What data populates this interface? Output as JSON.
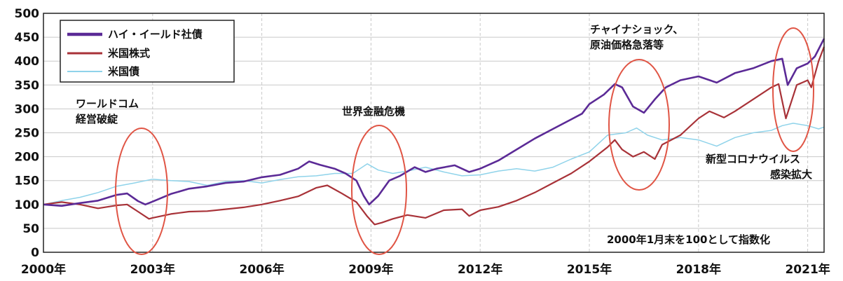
{
  "chart_data": {
    "type": "line",
    "title": "",
    "xlabel": "",
    "ylabel": "",
    "xlim": [
      2000.0,
      2021.45
    ],
    "ylim": [
      0,
      500
    ],
    "grid": true,
    "legend_position": "top-left",
    "yticks": [
      0,
      50,
      100,
      150,
      200,
      250,
      300,
      350,
      400,
      450,
      500
    ],
    "xticks": [
      {
        "value": 2000,
        "label": "2000年"
      },
      {
        "value": 2003,
        "label": "2003年"
      },
      {
        "value": 2006,
        "label": "2006年"
      },
      {
        "value": 2009,
        "label": "2009年"
      },
      {
        "value": 2012,
        "label": "2012年"
      },
      {
        "value": 2015,
        "label": "2015年"
      },
      {
        "value": 2018,
        "label": "2018年"
      },
      {
        "value": 2021,
        "label": "2021年"
      }
    ],
    "series": [
      {
        "name": "ハイ・イールド社債",
        "color": "#5b2a96",
        "points": [
          [
            2000.0,
            100
          ],
          [
            2000.5,
            97
          ],
          [
            2001.0,
            103
          ],
          [
            2001.5,
            108
          ],
          [
            2002.0,
            120
          ],
          [
            2002.3,
            123
          ],
          [
            2002.6,
            107
          ],
          [
            2002.8,
            100
          ],
          [
            2003.0,
            106
          ],
          [
            2003.5,
            122
          ],
          [
            2004.0,
            133
          ],
          [
            2004.5,
            138
          ],
          [
            2005.0,
            145
          ],
          [
            2005.5,
            148
          ],
          [
            2006.0,
            157
          ],
          [
            2006.5,
            162
          ],
          [
            2007.0,
            175
          ],
          [
            2007.3,
            190
          ],
          [
            2007.6,
            183
          ],
          [
            2008.0,
            175
          ],
          [
            2008.3,
            165
          ],
          [
            2008.6,
            150
          ],
          [
            2008.8,
            118
          ],
          [
            2008.95,
            100
          ],
          [
            2009.2,
            118
          ],
          [
            2009.5,
            150
          ],
          [
            2009.8,
            160
          ],
          [
            2010.2,
            178
          ],
          [
            2010.5,
            168
          ],
          [
            2010.8,
            175
          ],
          [
            2011.3,
            182
          ],
          [
            2011.7,
            168
          ],
          [
            2012.0,
            175
          ],
          [
            2012.5,
            192
          ],
          [
            2013.0,
            215
          ],
          [
            2013.5,
            238
          ],
          [
            2014.0,
            258
          ],
          [
            2014.5,
            278
          ],
          [
            2014.8,
            290
          ],
          [
            2015.0,
            310
          ],
          [
            2015.4,
            330
          ],
          [
            2015.7,
            352
          ],
          [
            2015.9,
            345
          ],
          [
            2016.2,
            305
          ],
          [
            2016.5,
            292
          ],
          [
            2016.8,
            320
          ],
          [
            2017.1,
            345
          ],
          [
            2017.5,
            360
          ],
          [
            2018.0,
            368
          ],
          [
            2018.5,
            355
          ],
          [
            2019.0,
            375
          ],
          [
            2019.5,
            385
          ],
          [
            2020.0,
            400
          ],
          [
            2020.3,
            405
          ],
          [
            2020.45,
            350
          ],
          [
            2020.7,
            385
          ],
          [
            2021.0,
            395
          ],
          [
            2021.2,
            410
          ],
          [
            2021.45,
            447
          ]
        ]
      },
      {
        "name": "米国株式",
        "color": "#a83238",
        "points": [
          [
            2000.0,
            100
          ],
          [
            2000.5,
            105
          ],
          [
            2001.0,
            100
          ],
          [
            2001.5,
            92
          ],
          [
            2002.0,
            98
          ],
          [
            2002.3,
            100
          ],
          [
            2002.6,
            85
          ],
          [
            2002.9,
            70
          ],
          [
            2003.0,
            72
          ],
          [
            2003.5,
            80
          ],
          [
            2004.0,
            85
          ],
          [
            2004.5,
            86
          ],
          [
            2005.0,
            90
          ],
          [
            2005.5,
            94
          ],
          [
            2006.0,
            100
          ],
          [
            2006.5,
            108
          ],
          [
            2007.0,
            117
          ],
          [
            2007.5,
            135
          ],
          [
            2007.8,
            140
          ],
          [
            2008.2,
            123
          ],
          [
            2008.6,
            105
          ],
          [
            2008.9,
            75
          ],
          [
            2009.1,
            58
          ],
          [
            2009.3,
            62
          ],
          [
            2009.6,
            70
          ],
          [
            2010.0,
            78
          ],
          [
            2010.5,
            72
          ],
          [
            2011.0,
            88
          ],
          [
            2011.5,
            90
          ],
          [
            2011.7,
            76
          ],
          [
            2012.0,
            88
          ],
          [
            2012.5,
            95
          ],
          [
            2013.0,
            108
          ],
          [
            2013.5,
            125
          ],
          [
            2014.0,
            145
          ],
          [
            2014.5,
            165
          ],
          [
            2015.0,
            190
          ],
          [
            2015.5,
            220
          ],
          [
            2015.7,
            235
          ],
          [
            2015.9,
            215
          ],
          [
            2016.2,
            200
          ],
          [
            2016.5,
            210
          ],
          [
            2016.8,
            195
          ],
          [
            2017.0,
            225
          ],
          [
            2017.5,
            245
          ],
          [
            2018.0,
            280
          ],
          [
            2018.3,
            295
          ],
          [
            2018.7,
            282
          ],
          [
            2019.0,
            295
          ],
          [
            2019.5,
            320
          ],
          [
            2020.0,
            345
          ],
          [
            2020.2,
            352
          ],
          [
            2020.4,
            280
          ],
          [
            2020.7,
            350
          ],
          [
            2021.0,
            360
          ],
          [
            2021.1,
            345
          ],
          [
            2021.3,
            400
          ],
          [
            2021.45,
            430
          ]
        ]
      },
      {
        "name": "米国債",
        "color": "#8fd3ea",
        "points": [
          [
            2000.0,
            100
          ],
          [
            2000.5,
            108
          ],
          [
            2001.0,
            115
          ],
          [
            2001.5,
            125
          ],
          [
            2002.0,
            138
          ],
          [
            2002.5,
            145
          ],
          [
            2003.0,
            153
          ],
          [
            2003.5,
            150
          ],
          [
            2004.0,
            148
          ],
          [
            2004.5,
            140
          ],
          [
            2005.0,
            148
          ],
          [
            2005.5,
            150
          ],
          [
            2006.0,
            145
          ],
          [
            2006.5,
            152
          ],
          [
            2007.0,
            158
          ],
          [
            2007.5,
            160
          ],
          [
            2008.0,
            165
          ],
          [
            2008.5,
            165
          ],
          [
            2008.9,
            185
          ],
          [
            2009.2,
            172
          ],
          [
            2009.6,
            165
          ],
          [
            2010.0,
            170
          ],
          [
            2010.5,
            178
          ],
          [
            2011.0,
            168
          ],
          [
            2011.5,
            160
          ],
          [
            2012.0,
            162
          ],
          [
            2012.5,
            170
          ],
          [
            2013.0,
            175
          ],
          [
            2013.5,
            170
          ],
          [
            2014.0,
            178
          ],
          [
            2014.5,
            195
          ],
          [
            2015.0,
            210
          ],
          [
            2015.5,
            245
          ],
          [
            2016.0,
            250
          ],
          [
            2016.3,
            260
          ],
          [
            2016.6,
            245
          ],
          [
            2017.0,
            235
          ],
          [
            2017.5,
            240
          ],
          [
            2018.0,
            235
          ],
          [
            2018.5,
            222
          ],
          [
            2019.0,
            240
          ],
          [
            2019.5,
            250
          ],
          [
            2020.0,
            255
          ],
          [
            2020.3,
            265
          ],
          [
            2020.6,
            270
          ],
          [
            2021.0,
            265
          ],
          [
            2021.3,
            258
          ],
          [
            2021.45,
            262
          ]
        ]
      }
    ],
    "annotations": [
      {
        "lines": [
          "ワールドコム",
          "経営破綻"
        ]
      },
      {
        "lines": [
          "世界金融危機"
        ]
      },
      {
        "lines": [
          "チャイナショック、",
          "原油価格急落等"
        ]
      },
      {
        "lines": [
          "新型コロナウイルス",
          "感染拡大"
        ]
      }
    ],
    "note": "2000年1月末を100として指数化",
    "highlight_color": "#e05545"
  }
}
